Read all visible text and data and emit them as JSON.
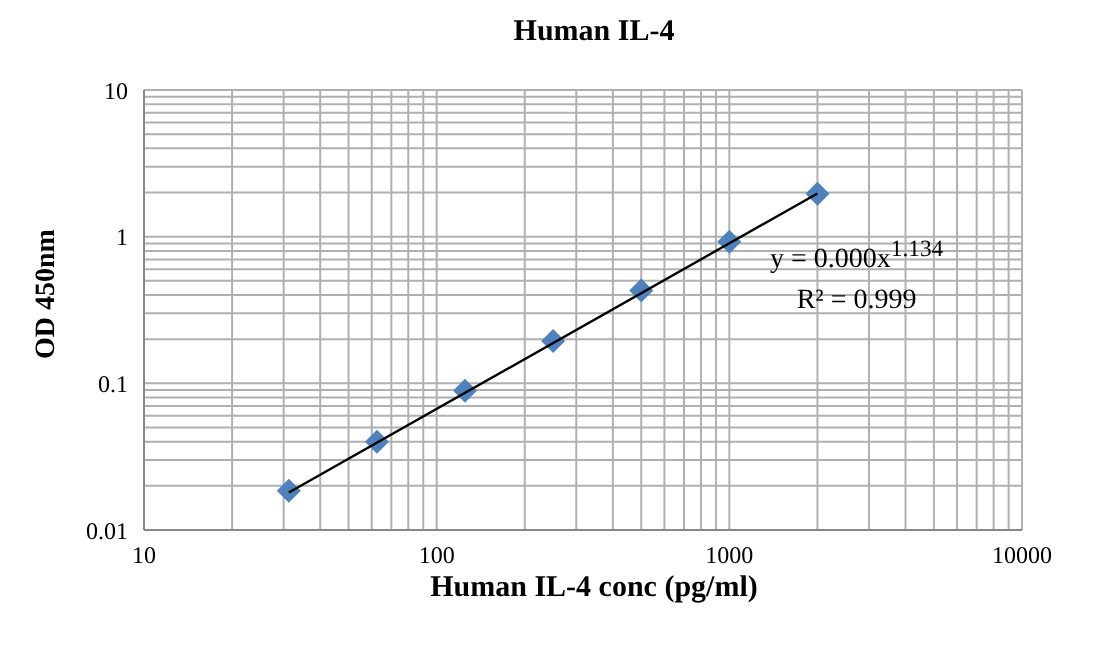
{
  "chart_data": {
    "type": "scatter",
    "title": "Human IL-4",
    "xlabel": "Human IL-4 conc (pg/ml)",
    "ylabel": "OD 450nm",
    "log": "xy",
    "grid": true,
    "xlim": [
      10,
      10000
    ],
    "xticks": [
      10,
      {
        "value": 20,
        "label": null
      },
      {
        "value": 30,
        "label": null
      },
      {
        "value": 40,
        "label": null
      },
      {
        "value": 50,
        "label": null
      },
      {
        "value": 60,
        "label": null
      },
      {
        "value": 70,
        "label": null
      },
      {
        "value": 80,
        "label": null
      },
      {
        "value": 90,
        "label": null
      },
      100,
      {
        "value": 200,
        "label": null
      },
      {
        "value": 300,
        "label": null
      },
      {
        "value": 400,
        "label": null
      },
      {
        "value": 500,
        "label": null
      },
      {
        "value": 600,
        "label": null
      },
      {
        "value": 700,
        "label": null
      },
      {
        "value": 800,
        "label": null
      },
      {
        "value": 900,
        "label": null
      },
      1000,
      {
        "value": 2000,
        "label": null
      },
      {
        "value": 3000,
        "label": null
      },
      {
        "value": 4000,
        "label": null
      },
      {
        "value": 5000,
        "label": null
      },
      {
        "value": 6000,
        "label": null
      },
      {
        "value": 7000,
        "label": null
      },
      {
        "value": 8000,
        "label": null
      },
      {
        "value": 9000,
        "label": null
      },
      10000
    ],
    "ylim": [
      0.01,
      10
    ],
    "yticks": [
      0.01,
      {
        "value": 0.02,
        "label": null
      },
      {
        "value": 0.03,
        "label": null
      },
      {
        "value": 0.04,
        "label": null
      },
      {
        "value": 0.05,
        "label": null
      },
      {
        "value": 0.06,
        "label": null
      },
      {
        "value": 0.07,
        "label": null
      },
      {
        "value": 0.08,
        "label": null
      },
      {
        "value": 0.09,
        "label": null
      },
      0.1,
      {
        "value": 0.2,
        "label": null
      },
      {
        "value": 0.3,
        "label": null
      },
      {
        "value": 0.4,
        "label": null
      },
      {
        "value": 0.5,
        "label": null
      },
      {
        "value": 0.6,
        "label": null
      },
      {
        "value": 0.7,
        "label": null
      },
      {
        "value": 0.8,
        "label": null
      },
      {
        "value": 0.9,
        "label": null
      },
      1,
      {
        "value": 2,
        "label": null
      },
      {
        "value": 3,
        "label": null
      },
      {
        "value": 4,
        "label": null
      },
      {
        "value": 5,
        "label": null
      },
      {
        "value": 6,
        "label": null
      },
      {
        "value": 7,
        "label": null
      },
      {
        "value": 8,
        "label": null
      },
      {
        "value": 9,
        "label": null
      },
      10
    ],
    "x": [
      31.25,
      62.5,
      125,
      250,
      500,
      1000,
      2000
    ],
    "series": [
      {
        "color": "#4f81bd",
        "marker": "diamond",
        "values": [
          0.0185,
          0.04,
          0.089,
          0.194,
          0.43,
          0.925,
          1.96
        ]
      },
      {
        "type": "line",
        "color": "#000000",
        "marker": "none",
        "line_style": "solid",
        "x": [
          31.25,
          2000
        ],
        "values": [
          0.018,
          1.97
        ]
      }
    ],
    "annotations": [
      "y = 0.000x$^{1.134}$",
      "R² = 0.999"
    ]
  }
}
